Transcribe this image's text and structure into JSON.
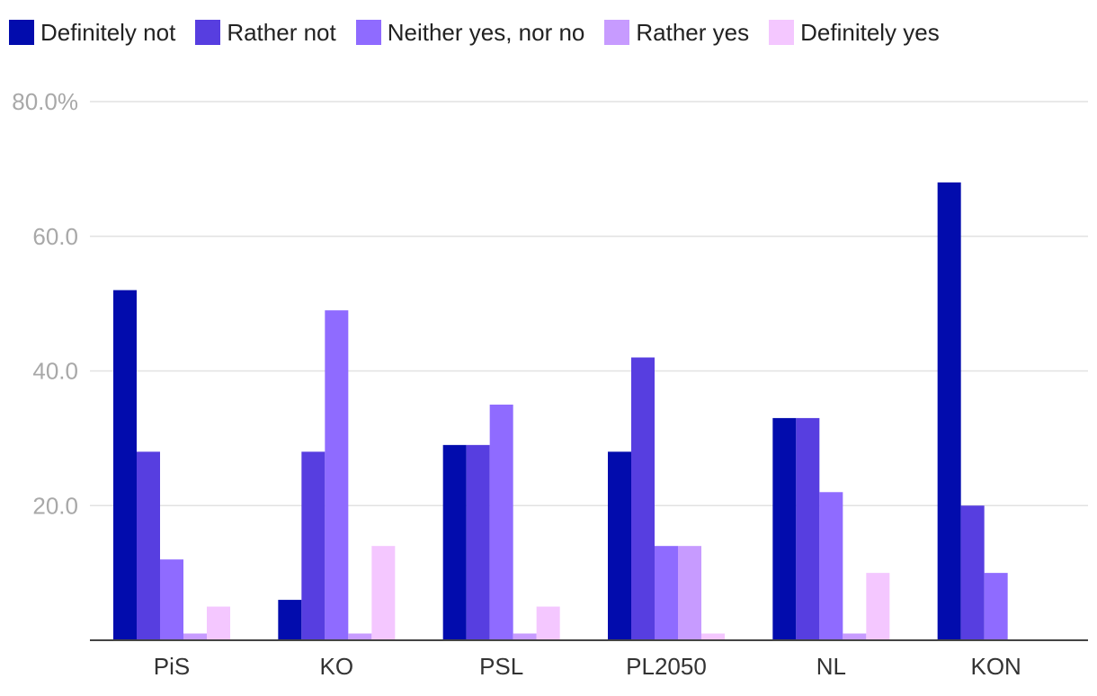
{
  "chart_data": {
    "type": "bar",
    "title": "",
    "xlabel": "",
    "ylabel": "",
    "ylim": [
      0,
      80
    ],
    "y_ticks": [
      {
        "value": 80,
        "label": "80.0%"
      },
      {
        "value": 60,
        "label": "60.0"
      },
      {
        "value": 40,
        "label": "40.0"
      },
      {
        "value": 20,
        "label": "20.0"
      }
    ],
    "grid": true,
    "legend_position": "top",
    "categories": [
      "PiS",
      "KO",
      "PSL",
      "PL2050",
      "NL",
      "KON"
    ],
    "series": [
      {
        "name": "Definitely not",
        "color": "#020cad",
        "values": [
          52,
          6,
          29,
          28,
          33,
          68
        ]
      },
      {
        "name": "Rather not",
        "color": "#573ee0",
        "values": [
          28,
          28,
          29,
          42,
          33,
          20
        ]
      },
      {
        "name": "Neither yes, nor no",
        "color": "#8f6bff",
        "values": [
          12,
          49,
          35,
          14,
          22,
          10
        ]
      },
      {
        "name": "Rather yes",
        "color": "#c79bff",
        "values": [
          1,
          1,
          1,
          14,
          1,
          0
        ]
      },
      {
        "name": "Definitely yes",
        "color": "#f4c7ff",
        "values": [
          5,
          14,
          5,
          1,
          10,
          0
        ]
      }
    ]
  }
}
